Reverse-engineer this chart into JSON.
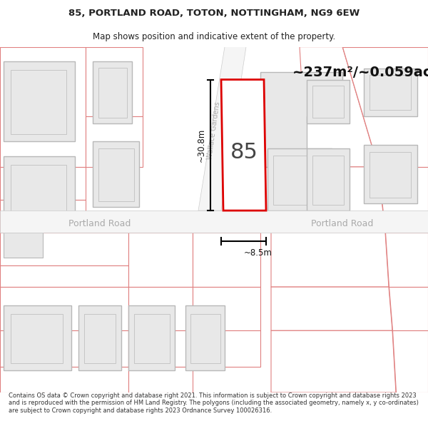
{
  "title_line1": "85, PORTLAND ROAD, TOTON, NOTTINGHAM, NG9 6EW",
  "title_line2": "Map shows position and indicative extent of the property.",
  "area_text": "~237m²/~0.059ac.",
  "dim_width": "~8.5m",
  "dim_height": "~30.8m",
  "property_number": "85",
  "road_name_left": "Portland Road",
  "road_name_right": "Portland Road",
  "street_name": "Wallace Gardens",
  "footer_text": "Contains OS data © Crown copyright and database right 2021. This information is subject to Crown copyright and database rights 2023 and is reproduced with the permission of HM Land Registry. The polygons (including the associated geometry, namely x, y co-ordinates) are subject to Crown copyright and database rights 2023 Ordnance Survey 100026316.",
  "bg_color": "#ffffff",
  "map_bg": "#ffffff",
  "building_fill_gray": "#e8e8e8",
  "building_stroke_gray": "#b8b8b8",
  "poly_stroke_pink": "#e08080",
  "poly_stroke_light": "#e8c0c0",
  "highlight_fill": "#ffffff",
  "highlight_stroke": "#dd0000",
  "road_fill": "#f8f8f8",
  "road_stroke": "#d8d8d8",
  "text_dark": "#222222",
  "text_gray": "#aaaaaa",
  "title_color": "#222222",
  "footer_color": "#333333",
  "arrow_color": "#111111"
}
